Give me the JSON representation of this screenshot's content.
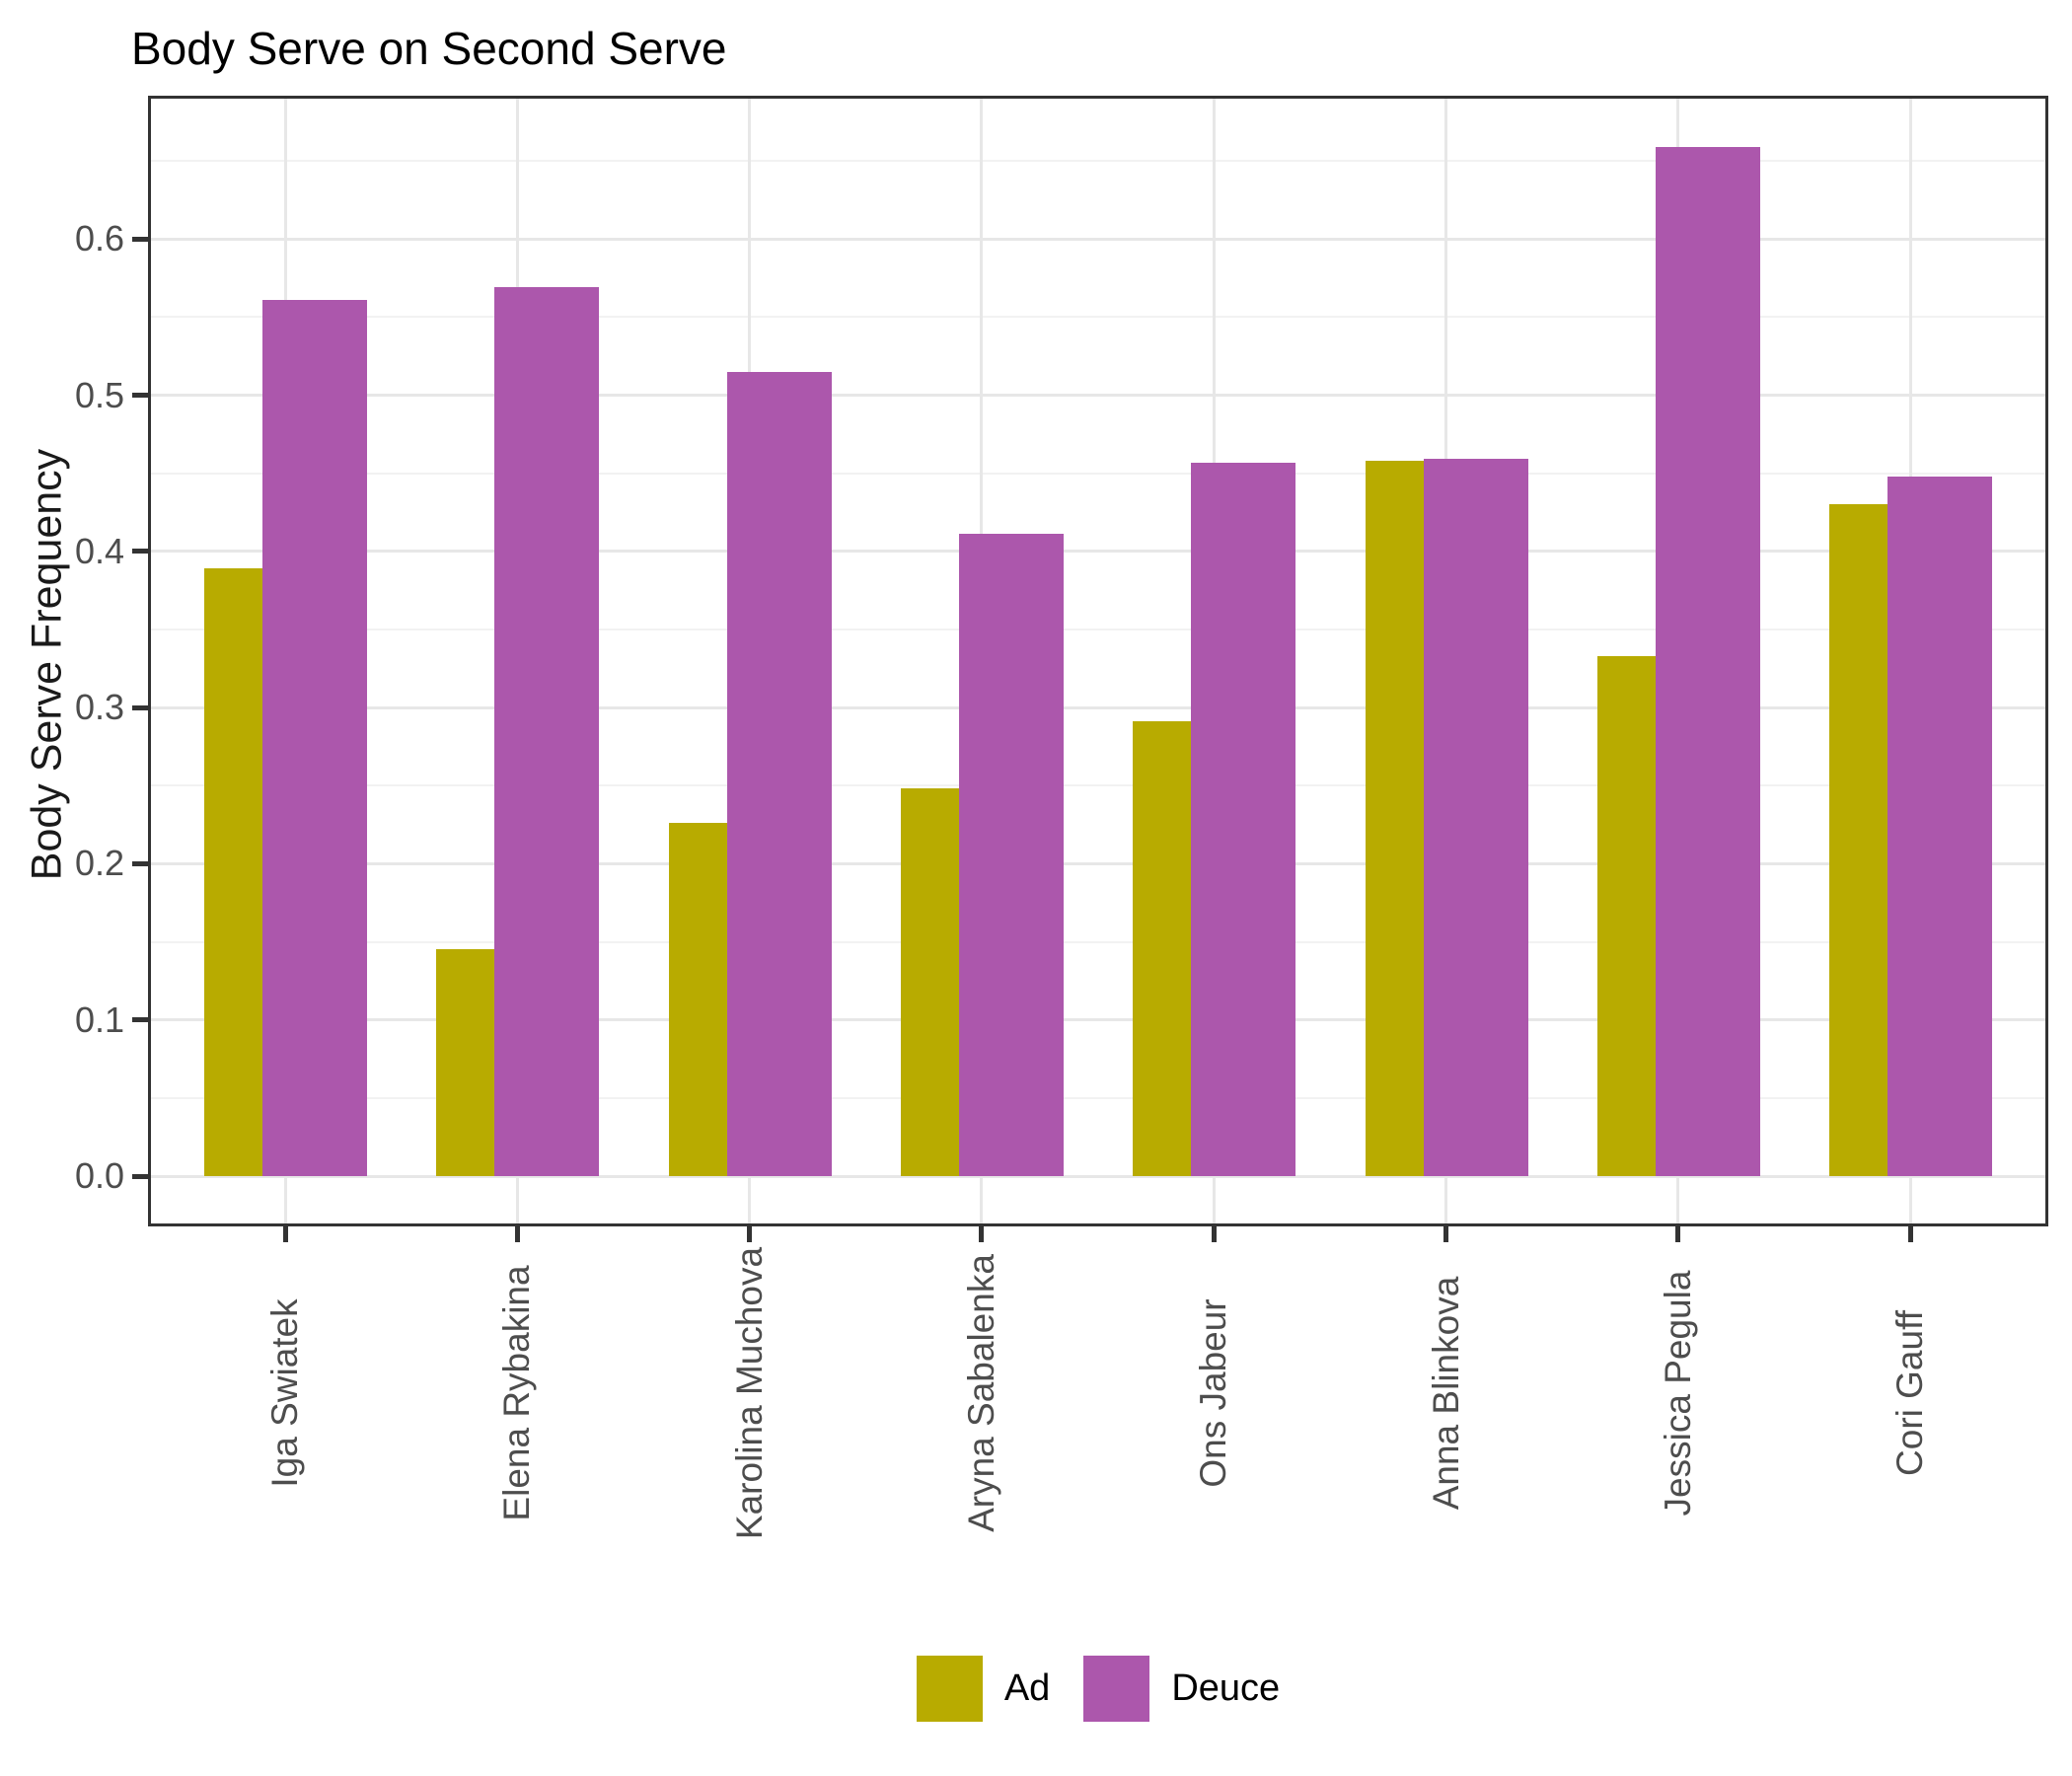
{
  "title": "Body Serve on Second Serve",
  "chart_data": {
    "type": "bar",
    "title": "Body Serve on Second Serve",
    "categories": [
      "Iga Swiatek",
      "Elena Rybakina",
      "Karolina Muchova",
      "Aryna Sabalenka",
      "Ons Jabeur",
      "Anna Blinkova",
      "Jessica Pegula",
      "Cori Gauff"
    ],
    "series": [
      {
        "name": "Ad",
        "color": "#b8ab00",
        "values": [
          0.389,
          0.145,
          0.226,
          0.248,
          0.291,
          0.458,
          0.333,
          0.43
        ]
      },
      {
        "name": "Deuce",
        "color": "#ac57ac",
        "values": [
          0.561,
          0.569,
          0.515,
          0.411,
          0.457,
          0.459,
          0.659,
          0.448
        ]
      }
    ],
    "xlabel": "",
    "ylabel": "Body Serve Frequency",
    "ylim": [
      0,
      0.69
    ],
    "yticks": [
      0.0,
      0.1,
      0.2,
      0.3,
      0.4,
      0.5,
      0.6
    ],
    "grid": "on",
    "legend_position": "bottom"
  },
  "colors": {
    "grid_major": "#e7e7e7",
    "grid_minor": "#f2f2f2",
    "panel_border": "#333333",
    "tick": "#333333",
    "axis_text": "#4d4d4d"
  }
}
